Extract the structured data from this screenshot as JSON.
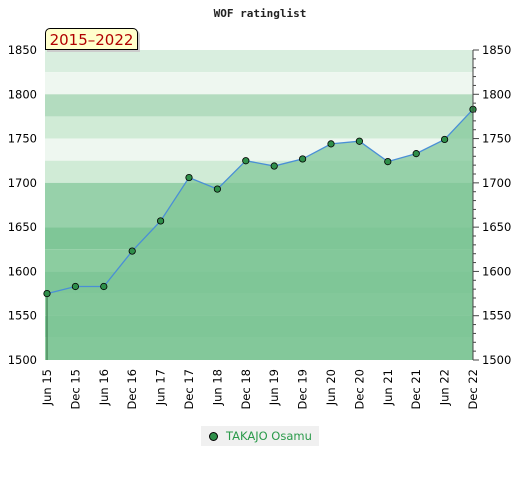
{
  "chart_data": {
    "type": "area",
    "title": "WOF ratinglist",
    "range_label": "2015–2022",
    "x": [
      "Jun 15",
      "Dec 15",
      "Jun 16",
      "Dec 16",
      "Jun 17",
      "Dec 17",
      "Jun 18",
      "Dec 18",
      "Jun 19",
      "Dec 19",
      "Jun 20",
      "Dec 20",
      "Jun 21",
      "Dec 21",
      "Jun 22",
      "Dec 22"
    ],
    "series": [
      {
        "name": "TAKAJO Osamu",
        "values": [
          1575,
          1583,
          1583,
          1623,
          1657,
          1706,
          1693,
          1725,
          1719,
          1727,
          1744,
          1747,
          1724,
          1733,
          1749,
          1783
        ]
      }
    ],
    "y_ticks": [
      1500,
      1550,
      1600,
      1650,
      1700,
      1750,
      1800,
      1850
    ],
    "ylim": [
      1500,
      1850
    ],
    "grid": true,
    "legend_position": "bottom",
    "colors": {
      "fill": "#7fc697",
      "line": "#4a8fd6",
      "marker": "#2f8f4a",
      "legend_text": "#2a9a4a",
      "badge_text": "#b00000",
      "badge_bg": "#ffffcc"
    }
  }
}
